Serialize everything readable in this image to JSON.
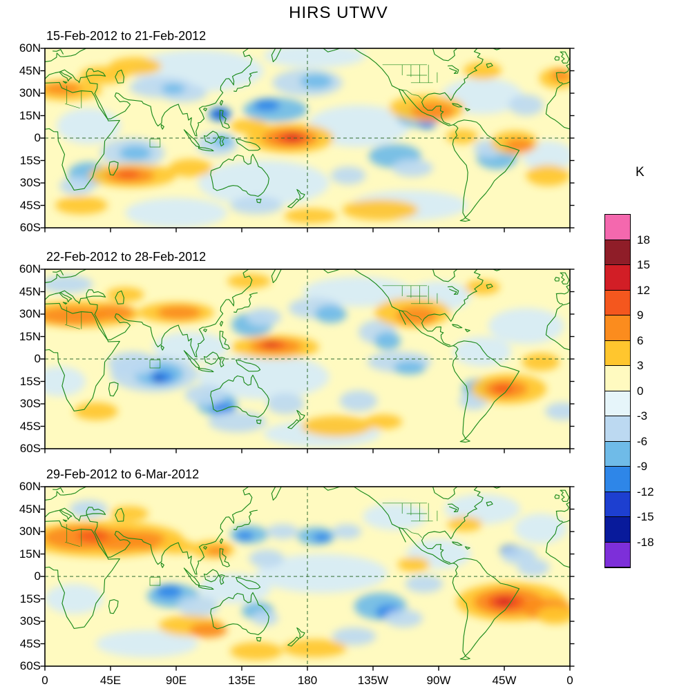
{
  "chart_data": {
    "type": "heatmap",
    "title": "HIRS UTWV",
    "unit": "K",
    "projection": "cylindrical equidistant, longitude 0E to 360E, latitude 60N to 60S",
    "value_range_K": [
      -18,
      18
    ],
    "colorbar_levels": [
      18,
      15,
      12,
      9,
      6,
      3,
      0,
      -3,
      -6,
      -9,
      -12,
      -15,
      -18
    ],
    "colorbar_colors": [
      "#F468AE",
      "#8F1D28",
      "#D21E26",
      "#F4571E",
      "#FB8C1E",
      "#FFC62E",
      "#FFFAC0",
      "#E6F5FA",
      "#BCD9F1",
      "#6FBBE8",
      "#2E86E8",
      "#1D3FD0",
      "#081A9B",
      "#7D2FD9"
    ],
    "x_ticks": [
      "0",
      "45E",
      "90E",
      "135E",
      "180",
      "135W",
      "90W",
      "45W",
      "0"
    ],
    "y_ticks": [
      "60N",
      "45N",
      "30N",
      "15N",
      "0",
      "15S",
      "30S",
      "45S",
      "60S"
    ],
    "palette": {
      "paleyellow": "#FFFAC0",
      "paleblue": "#D6ECF7",
      "lightblue": "#BCD9F1",
      "cyanblue": "#6FBBE8",
      "midblue": "#2E86E8",
      "blue": "#1D3FD0",
      "deepblue": "#0A1FB0",
      "purple": "#7D2FD9",
      "gold": "#FFC62E",
      "orange": "#FB8C1E",
      "orangered": "#F4571E",
      "red": "#D21E26",
      "darkred": "#8F1D28",
      "pink": "#F468AE"
    },
    "anomaly_blob_format": "[lon_deg_east, lat_deg, rx_deg, ry_deg, color_key]",
    "panels": [
      {
        "title": "15-Feb-2012 to 21-Feb-2012",
        "anomaly_blobs": [
          [
            105,
            45,
            45,
            14,
            "paleblue"
          ],
          [
            150,
            -30,
            45,
            15,
            "paleblue"
          ],
          [
            215,
            8,
            35,
            14,
            "paleblue"
          ],
          [
            300,
            28,
            28,
            12,
            "paleblue"
          ],
          [
            30,
            8,
            22,
            12,
            "paleblue"
          ],
          [
            90,
            -50,
            35,
            10,
            "paleblue"
          ],
          [
            250,
            -45,
            40,
            10,
            "paleblue"
          ],
          [
            345,
            -12,
            18,
            10,
            "paleblue"
          ],
          [
            185,
            55,
            35,
            8,
            "paleblue"
          ],
          [
            60,
            -10,
            22,
            10,
            "lightblue"
          ],
          [
            62,
            -10,
            11,
            5,
            "cyanblue"
          ],
          [
            30,
            -24,
            14,
            8,
            "cyanblue"
          ],
          [
            22,
            -32,
            12,
            6,
            "lightblue"
          ],
          [
            118,
            -4,
            14,
            8,
            "lightblue"
          ],
          [
            122,
            -2,
            7,
            4,
            "cyanblue"
          ],
          [
            180,
            37,
            24,
            9,
            "lightblue"
          ],
          [
            186,
            38,
            11,
            5,
            "cyanblue"
          ],
          [
            158,
            19,
            22,
            8,
            "cyanblue"
          ],
          [
            152,
            22,
            9,
            4,
            "midblue"
          ],
          [
            120,
            16,
            8,
            5,
            "midblue"
          ],
          [
            120,
            16,
            3.5,
            2,
            "deepblue"
          ],
          [
            80,
            34,
            22,
            7,
            "lightblue"
          ],
          [
            95,
            30,
            16,
            6,
            "lightblue"
          ],
          [
            88,
            33,
            8,
            3.5,
            "cyanblue"
          ],
          [
            255,
            15,
            14,
            8,
            "cyanblue"
          ],
          [
            262,
            12,
            7,
            6,
            "midblue"
          ],
          [
            262,
            14,
            3,
            3,
            "deepblue"
          ],
          [
            240,
            -12,
            18,
            8,
            "cyanblue"
          ],
          [
            252,
            -20,
            14,
            6,
            "lightblue"
          ],
          [
            310,
            -13,
            14,
            8,
            "cyanblue"
          ],
          [
            304,
            -7,
            10,
            6,
            "lightblue"
          ],
          [
            330,
            22,
            12,
            7,
            "lightblue"
          ],
          [
            208,
            -25,
            12,
            6,
            "lightblue"
          ],
          [
            145,
            -45,
            18,
            6,
            "lightblue"
          ],
          [
            15,
            32,
            24,
            7,
            "gold"
          ],
          [
            12,
            33,
            13,
            4,
            "orange"
          ],
          [
            40,
            42,
            16,
            6,
            "gold"
          ],
          [
            62,
            48,
            18,
            6,
            "gold"
          ],
          [
            352,
            40,
            13,
            7,
            "gold"
          ],
          [
            354,
            42,
            7,
            4,
            "orange"
          ],
          [
            60,
            -25,
            30,
            8,
            "gold"
          ],
          [
            58,
            -25,
            17,
            5,
            "orange"
          ],
          [
            57,
            -24,
            8,
            2.8,
            "orangered"
          ],
          [
            100,
            -20,
            15,
            6,
            "gold"
          ],
          [
            168,
            0,
            30,
            10,
            "gold"
          ],
          [
            168,
            0,
            19,
            6.5,
            "orange"
          ],
          [
            169,
            0,
            11,
            4,
            "orangered"
          ],
          [
            170,
            0.5,
            5.5,
            2.2,
            "red"
          ],
          [
            140,
            8,
            13,
            5,
            "gold"
          ],
          [
            262,
            20,
            26,
            9,
            "gold"
          ],
          [
            266,
            18,
            15,
            6,
            "orange"
          ],
          [
            286,
            1,
            11,
            5,
            "gold"
          ],
          [
            322,
            -3,
            16,
            8,
            "gold"
          ],
          [
            325,
            -5,
            10,
            4.5,
            "orange"
          ],
          [
            345,
            -25,
            15,
            7,
            "gold"
          ],
          [
            300,
            45,
            13,
            6,
            "gold"
          ],
          [
            230,
            -48,
            26,
            7,
            "gold"
          ],
          [
            182,
            -52,
            18,
            5,
            "gold"
          ],
          [
            25,
            -45,
            18,
            6,
            "gold"
          ]
        ]
      },
      {
        "title": "22-Feb-2012 to 28-Feb-2012",
        "anomaly_blobs": [
          [
            150,
            -12,
            45,
            15,
            "paleblue"
          ],
          [
            215,
            45,
            38,
            10,
            "paleblue"
          ],
          [
            330,
            22,
            26,
            12,
            "paleblue"
          ],
          [
            100,
            8,
            26,
            10,
            "paleblue"
          ],
          [
            270,
            42,
            22,
            10,
            "paleblue"
          ],
          [
            190,
            -50,
            40,
            9,
            "paleblue"
          ],
          [
            300,
            5,
            20,
            10,
            "paleblue"
          ],
          [
            10,
            -15,
            18,
            10,
            "paleblue"
          ],
          [
            75,
            -10,
            30,
            12,
            "lightblue"
          ],
          [
            78,
            -10,
            17,
            8,
            "cyanblue"
          ],
          [
            80,
            -12,
            8,
            4,
            "midblue"
          ],
          [
            78,
            -13,
            3,
            1.8,
            "deepblue"
          ],
          [
            60,
            -3,
            17,
            8,
            "lightblue"
          ],
          [
            118,
            -30,
            14,
            8,
            "cyanblue"
          ],
          [
            122,
            -33,
            8,
            4,
            "midblue"
          ],
          [
            110,
            -24,
            14,
            7,
            "lightblue"
          ],
          [
            132,
            -42,
            20,
            7,
            "lightblue"
          ],
          [
            142,
            23,
            14,
            8,
            "cyanblue"
          ],
          [
            150,
            28,
            12,
            6,
            "lightblue"
          ],
          [
            185,
            34,
            18,
            7,
            "lightblue"
          ],
          [
            196,
            30,
            11,
            6,
            "cyanblue"
          ],
          [
            228,
            18,
            13,
            8,
            "lightblue"
          ],
          [
            235,
            12,
            9,
            6,
            "cyanblue"
          ],
          [
            243,
            -2,
            22,
            7,
            "lightblue"
          ],
          [
            250,
            -6,
            11,
            4.5,
            "cyanblue"
          ],
          [
            298,
            -20,
            12,
            7,
            "cyanblue"
          ],
          [
            294,
            -28,
            10,
            6,
            "lightblue"
          ],
          [
            15,
            50,
            18,
            6,
            "lightblue"
          ],
          [
            215,
            -28,
            13,
            7,
            "lightblue"
          ],
          [
            355,
            -35,
            12,
            6,
            "lightblue"
          ],
          [
            165,
            -30,
            13,
            7,
            "lightblue"
          ],
          [
            25,
            30,
            40,
            9,
            "gold"
          ],
          [
            20,
            29,
            24,
            6,
            "orange"
          ],
          [
            46,
            31,
            15,
            5,
            "orange"
          ],
          [
            90,
            31,
            26,
            7,
            "gold"
          ],
          [
            92,
            31,
            15,
            4.5,
            "orange"
          ],
          [
            158,
            8,
            30,
            8,
            "gold"
          ],
          [
            158,
            8.5,
            18,
            5,
            "orange"
          ],
          [
            156,
            9.5,
            9.5,
            3,
            "orangered"
          ],
          [
            155,
            10,
            4.5,
            1.6,
            "red"
          ],
          [
            252,
            31,
            26,
            10,
            "gold"
          ],
          [
            255,
            29,
            14,
            6,
            "orange"
          ],
          [
            318,
            -20,
            26,
            10,
            "gold"
          ],
          [
            316,
            -20,
            15,
            6,
            "orange"
          ],
          [
            314,
            -20,
            7.5,
            3.2,
            "orangered"
          ],
          [
            340,
            -2,
            13,
            6,
            "gold"
          ],
          [
            200,
            -45,
            24,
            7,
            "gold"
          ],
          [
            232,
            -42,
            13,
            5,
            "gold"
          ],
          [
            55,
            43,
            13,
            5,
            "gold"
          ],
          [
            140,
            52,
            15,
            5,
            "gold"
          ],
          [
            300,
            48,
            12,
            5,
            "gold"
          ],
          [
            35,
            -35,
            15,
            6,
            "gold"
          ]
        ]
      },
      {
        "title": "29-Feb-2012 to 6-Mar-2012",
        "anomaly_blobs": [
          [
            190,
            2,
            45,
            13,
            "paleblue"
          ],
          [
            300,
            45,
            26,
            10,
            "paleblue"
          ],
          [
            240,
            40,
            22,
            9,
            "paleblue"
          ],
          [
            130,
            -8,
            25,
            10,
            "paleblue"
          ],
          [
            20,
            -15,
            20,
            10,
            "paleblue"
          ],
          [
            340,
            32,
            18,
            10,
            "paleblue"
          ],
          [
            70,
            -45,
            35,
            9,
            "paleblue"
          ],
          [
            270,
            15,
            22,
            10,
            "paleblue"
          ],
          [
            140,
            28,
            13,
            6,
            "cyanblue"
          ],
          [
            137,
            27,
            6,
            3,
            "midblue"
          ],
          [
            163,
            30,
            11,
            5,
            "lightblue"
          ],
          [
            186,
            27,
            13,
            6,
            "cyanblue"
          ],
          [
            190,
            26,
            6,
            3,
            "midblue"
          ],
          [
            207,
            30,
            10,
            5,
            "lightblue"
          ],
          [
            152,
            12,
            12,
            6,
            "lightblue"
          ],
          [
            88,
            -13,
            18,
            8,
            "cyanblue"
          ],
          [
            85,
            -10,
            9,
            4.5,
            "midblue"
          ],
          [
            105,
            -20,
            14,
            7,
            "lightblue"
          ],
          [
            146,
            -23,
            11,
            6,
            "cyanblue"
          ],
          [
            151,
            -28,
            9,
            5,
            "lightblue"
          ],
          [
            230,
            -20,
            18,
            9,
            "cyanblue"
          ],
          [
            236,
            -24,
            9,
            5,
            "midblue"
          ],
          [
            246,
            -28,
            13,
            6,
            "lightblue"
          ],
          [
            320,
            17,
            8,
            4,
            "midblue"
          ],
          [
            320,
            17,
            3,
            1.8,
            "deepblue"
          ],
          [
            325,
            14,
            12,
            6,
            "lightblue"
          ],
          [
            335,
            6,
            11,
            6,
            "lightblue"
          ],
          [
            260,
            -5,
            13,
            6,
            "lightblue"
          ],
          [
            212,
            -40,
            15,
            6,
            "lightblue"
          ],
          [
            30,
            45,
            13,
            6,
            "lightblue"
          ],
          [
            40,
            25,
            55,
            12,
            "gold"
          ],
          [
            25,
            26,
            26,
            8,
            "orange"
          ],
          [
            50,
            24,
            20,
            7,
            "orange"
          ],
          [
            68,
            24,
            15,
            6,
            "orange"
          ],
          [
            33,
            27,
            11,
            4,
            "orangered"
          ],
          [
            90,
            20,
            13,
            5,
            "gold"
          ],
          [
            115,
            18,
            15,
            6,
            "gold"
          ],
          [
            118,
            17,
            8,
            3.2,
            "orange"
          ],
          [
            320,
            -17,
            38,
            13,
            "gold"
          ],
          [
            318,
            -17,
            24,
            9,
            "orange"
          ],
          [
            316,
            -17,
            13,
            5.5,
            "orangered"
          ],
          [
            315,
            -17,
            6.5,
            2.8,
            "red"
          ],
          [
            345,
            -22,
            17,
            7,
            "orange"
          ],
          [
            350,
            -26,
            13,
            6,
            "gold"
          ],
          [
            100,
            -33,
            22,
            7,
            "gold"
          ],
          [
            112,
            -36,
            13,
            5,
            "orange"
          ],
          [
            145,
            -50,
            18,
            6,
            "gold"
          ],
          [
            185,
            -48,
            22,
            6,
            "gold"
          ],
          [
            253,
            8,
            11,
            5,
            "gold"
          ],
          [
            288,
            35,
            12,
            5,
            "gold"
          ],
          [
            58,
            42,
            13,
            5,
            "gold"
          ]
        ]
      }
    ]
  }
}
